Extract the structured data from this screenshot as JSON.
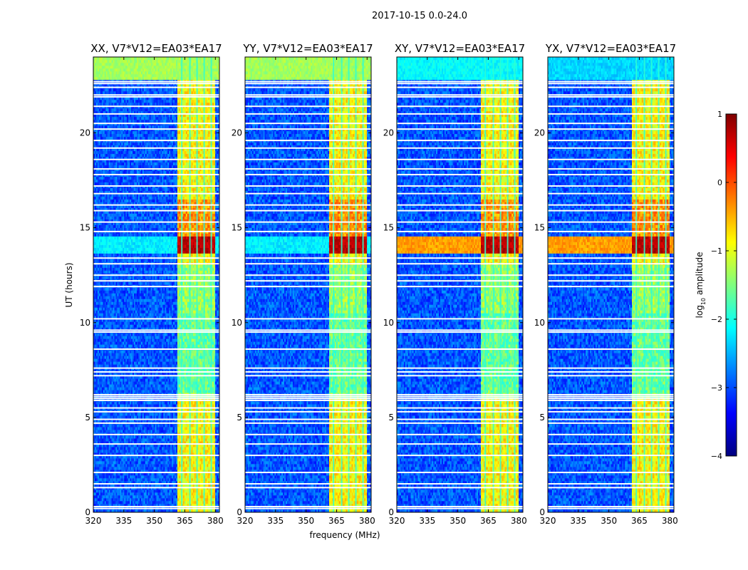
{
  "chart_data": {
    "type": "heatmap",
    "title": "2017-10-15 0.0-24.0",
    "xlabel": "frequency (MHz)",
    "ylabel": "UT (hours)",
    "xlim": [
      320,
      382
    ],
    "ylim": [
      0,
      24
    ],
    "x_ticks": [
      320,
      335,
      350,
      365,
      380
    ],
    "y_ticks": [
      0,
      5,
      10,
      15,
      20
    ],
    "colorbar": {
      "label_prefix": "log",
      "label_sub": "10",
      "label_suffix": " amplitude",
      "range": [
        -4,
        1
      ],
      "ticks": [
        "1",
        "0",
        "−1",
        "−2",
        "−3",
        "−4"
      ],
      "colormap": [
        "#00007f",
        "#0000ff",
        "#007fff",
        "#00ffff",
        "#7fff7f",
        "#ffff00",
        "#ff7f00",
        "#ff0000",
        "#7f0000"
      ]
    },
    "panels": [
      {
        "title": "XX, V7*V12=EA03*EA17",
        "top_band_value": -1.5,
        "cross_hot": false
      },
      {
        "title": "YY, V7*V12=EA03*EA17",
        "top_band_value": -1.5,
        "cross_hot": false
      },
      {
        "title": "XY, V7*V12=EA03*EA17",
        "top_band_value": -2.3,
        "cross_hot": true
      },
      {
        "title": "YX, V7*V12=EA03*EA17",
        "top_band_value": -2.5,
        "cross_hot": true
      }
    ],
    "signal_band_mhz": [
      361,
      380
    ],
    "signal_column_mhz": [
      363.5,
      367.5,
      371,
      374.5,
      378
    ],
    "flag_lines_ut": [
      0.2,
      0.3,
      1.3,
      1.5,
      2.1,
      3.0,
      3.6,
      4.1,
      4.7,
      4.9,
      5.3,
      5.5,
      5.9,
      6.0,
      6.1,
      6.2,
      7.2,
      7.4,
      7.6,
      8.6,
      9.5,
      9.6,
      10.2,
      11.9,
      12.2,
      12.5,
      13.1,
      13.4,
      14.8,
      15.3,
      15.9,
      16.2,
      16.8,
      17.2,
      17.8,
      18.1,
      18.6,
      19.2,
      19.6,
      20.2,
      20.5,
      21.0,
      21.4,
      21.9,
      22.0,
      22.4,
      22.6,
      22.7
    ],
    "rfi_event": {
      "ut_range": [
        13.6,
        14.6
      ],
      "value": 0.5
    }
  }
}
